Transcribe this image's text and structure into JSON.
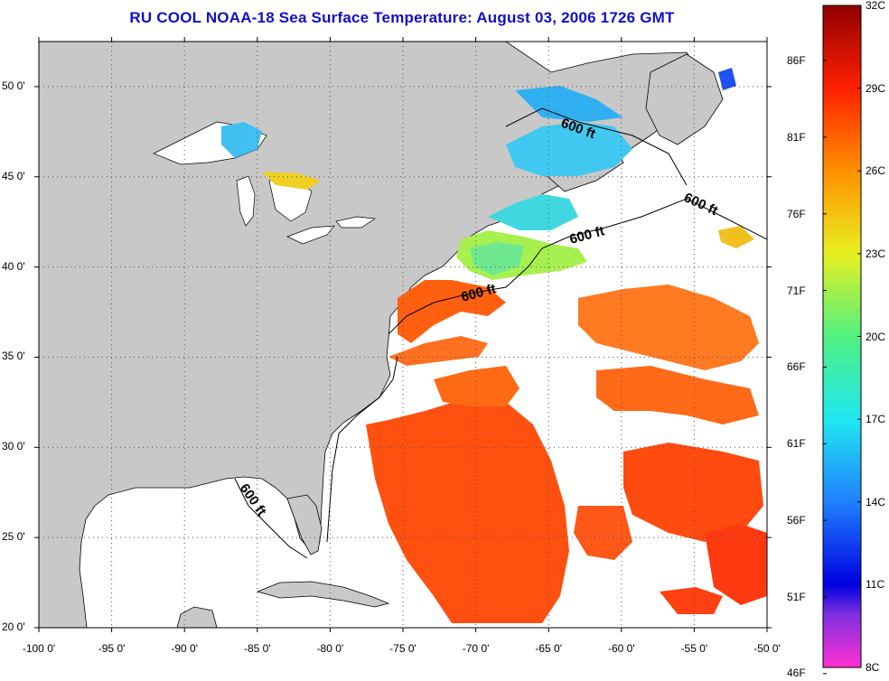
{
  "title": "RU COOL  NOAA-18  Sea Surface Temperature:  August 03, 2006 1726 GMT",
  "map": {
    "lat_ticks": [
      "50 0'",
      "45 0'",
      "40 0'",
      "35 0'",
      "30 0'",
      "25 0'",
      "20 0'"
    ],
    "lon_ticks": [
      "-100 0'",
      "-95 0'",
      "-90 0'",
      "-85 0'",
      "-80 0'",
      "-75 0'",
      "-70 0'",
      "-65 0'",
      "-60 0'",
      "-55 0'",
      "-50 0'"
    ],
    "lat_values": [
      50,
      45,
      40,
      35,
      30,
      25,
      20
    ],
    "lon_values": [
      -100,
      -95,
      -90,
      -85,
      -80,
      -75,
      -70,
      -65,
      -60,
      -55,
      -50
    ],
    "lon_range": [
      -100,
      -50
    ],
    "lat_range": [
      20,
      52.5
    ],
    "isobath_label": "600 ft",
    "land_color": "#c8c8c8",
    "ocean_nodata_color": "#ffffff"
  },
  "colorbar": {
    "fahrenheit": [
      "86F",
      "81F",
      "76F",
      "71F",
      "66F",
      "61F",
      "56F",
      "51F",
      "46F"
    ],
    "celsius": [
      "32C",
      "29C",
      "26C",
      "23C",
      "20C",
      "17C",
      "14C",
      "11C",
      "8C"
    ],
    "range_c": [
      8,
      32
    ]
  }
}
